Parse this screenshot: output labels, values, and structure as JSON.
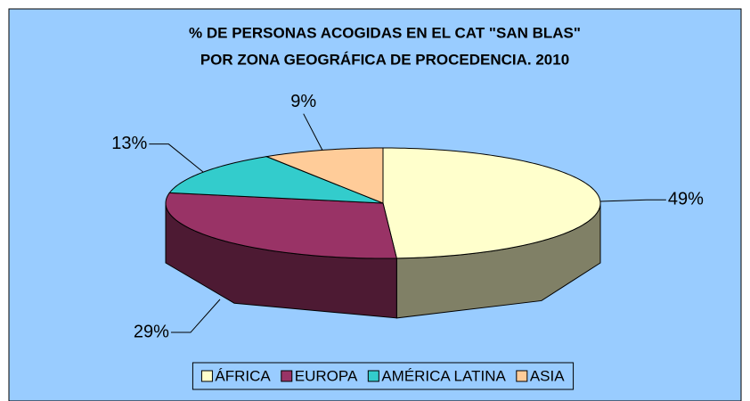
{
  "chart_data": {
    "type": "pie3d",
    "title": [
      "% DE PERSONAS ACOGIDAS EN EL CAT \"SAN BLAS\"",
      "POR ZONA GEOGRÁFICA DE PROCEDENCIA. 2010"
    ],
    "categories": [
      "ÁFRICA",
      "EUROPA",
      "AMÉRICA LATINA",
      "ASIA"
    ],
    "values": [
      49,
      29,
      13,
      9
    ],
    "value_labels": [
      "49%",
      "29%",
      "13%",
      "9%"
    ],
    "colors": [
      "#ffffcc",
      "#993366",
      "#33cccc",
      "#ffcc99"
    ],
    "legend": "bottom"
  }
}
